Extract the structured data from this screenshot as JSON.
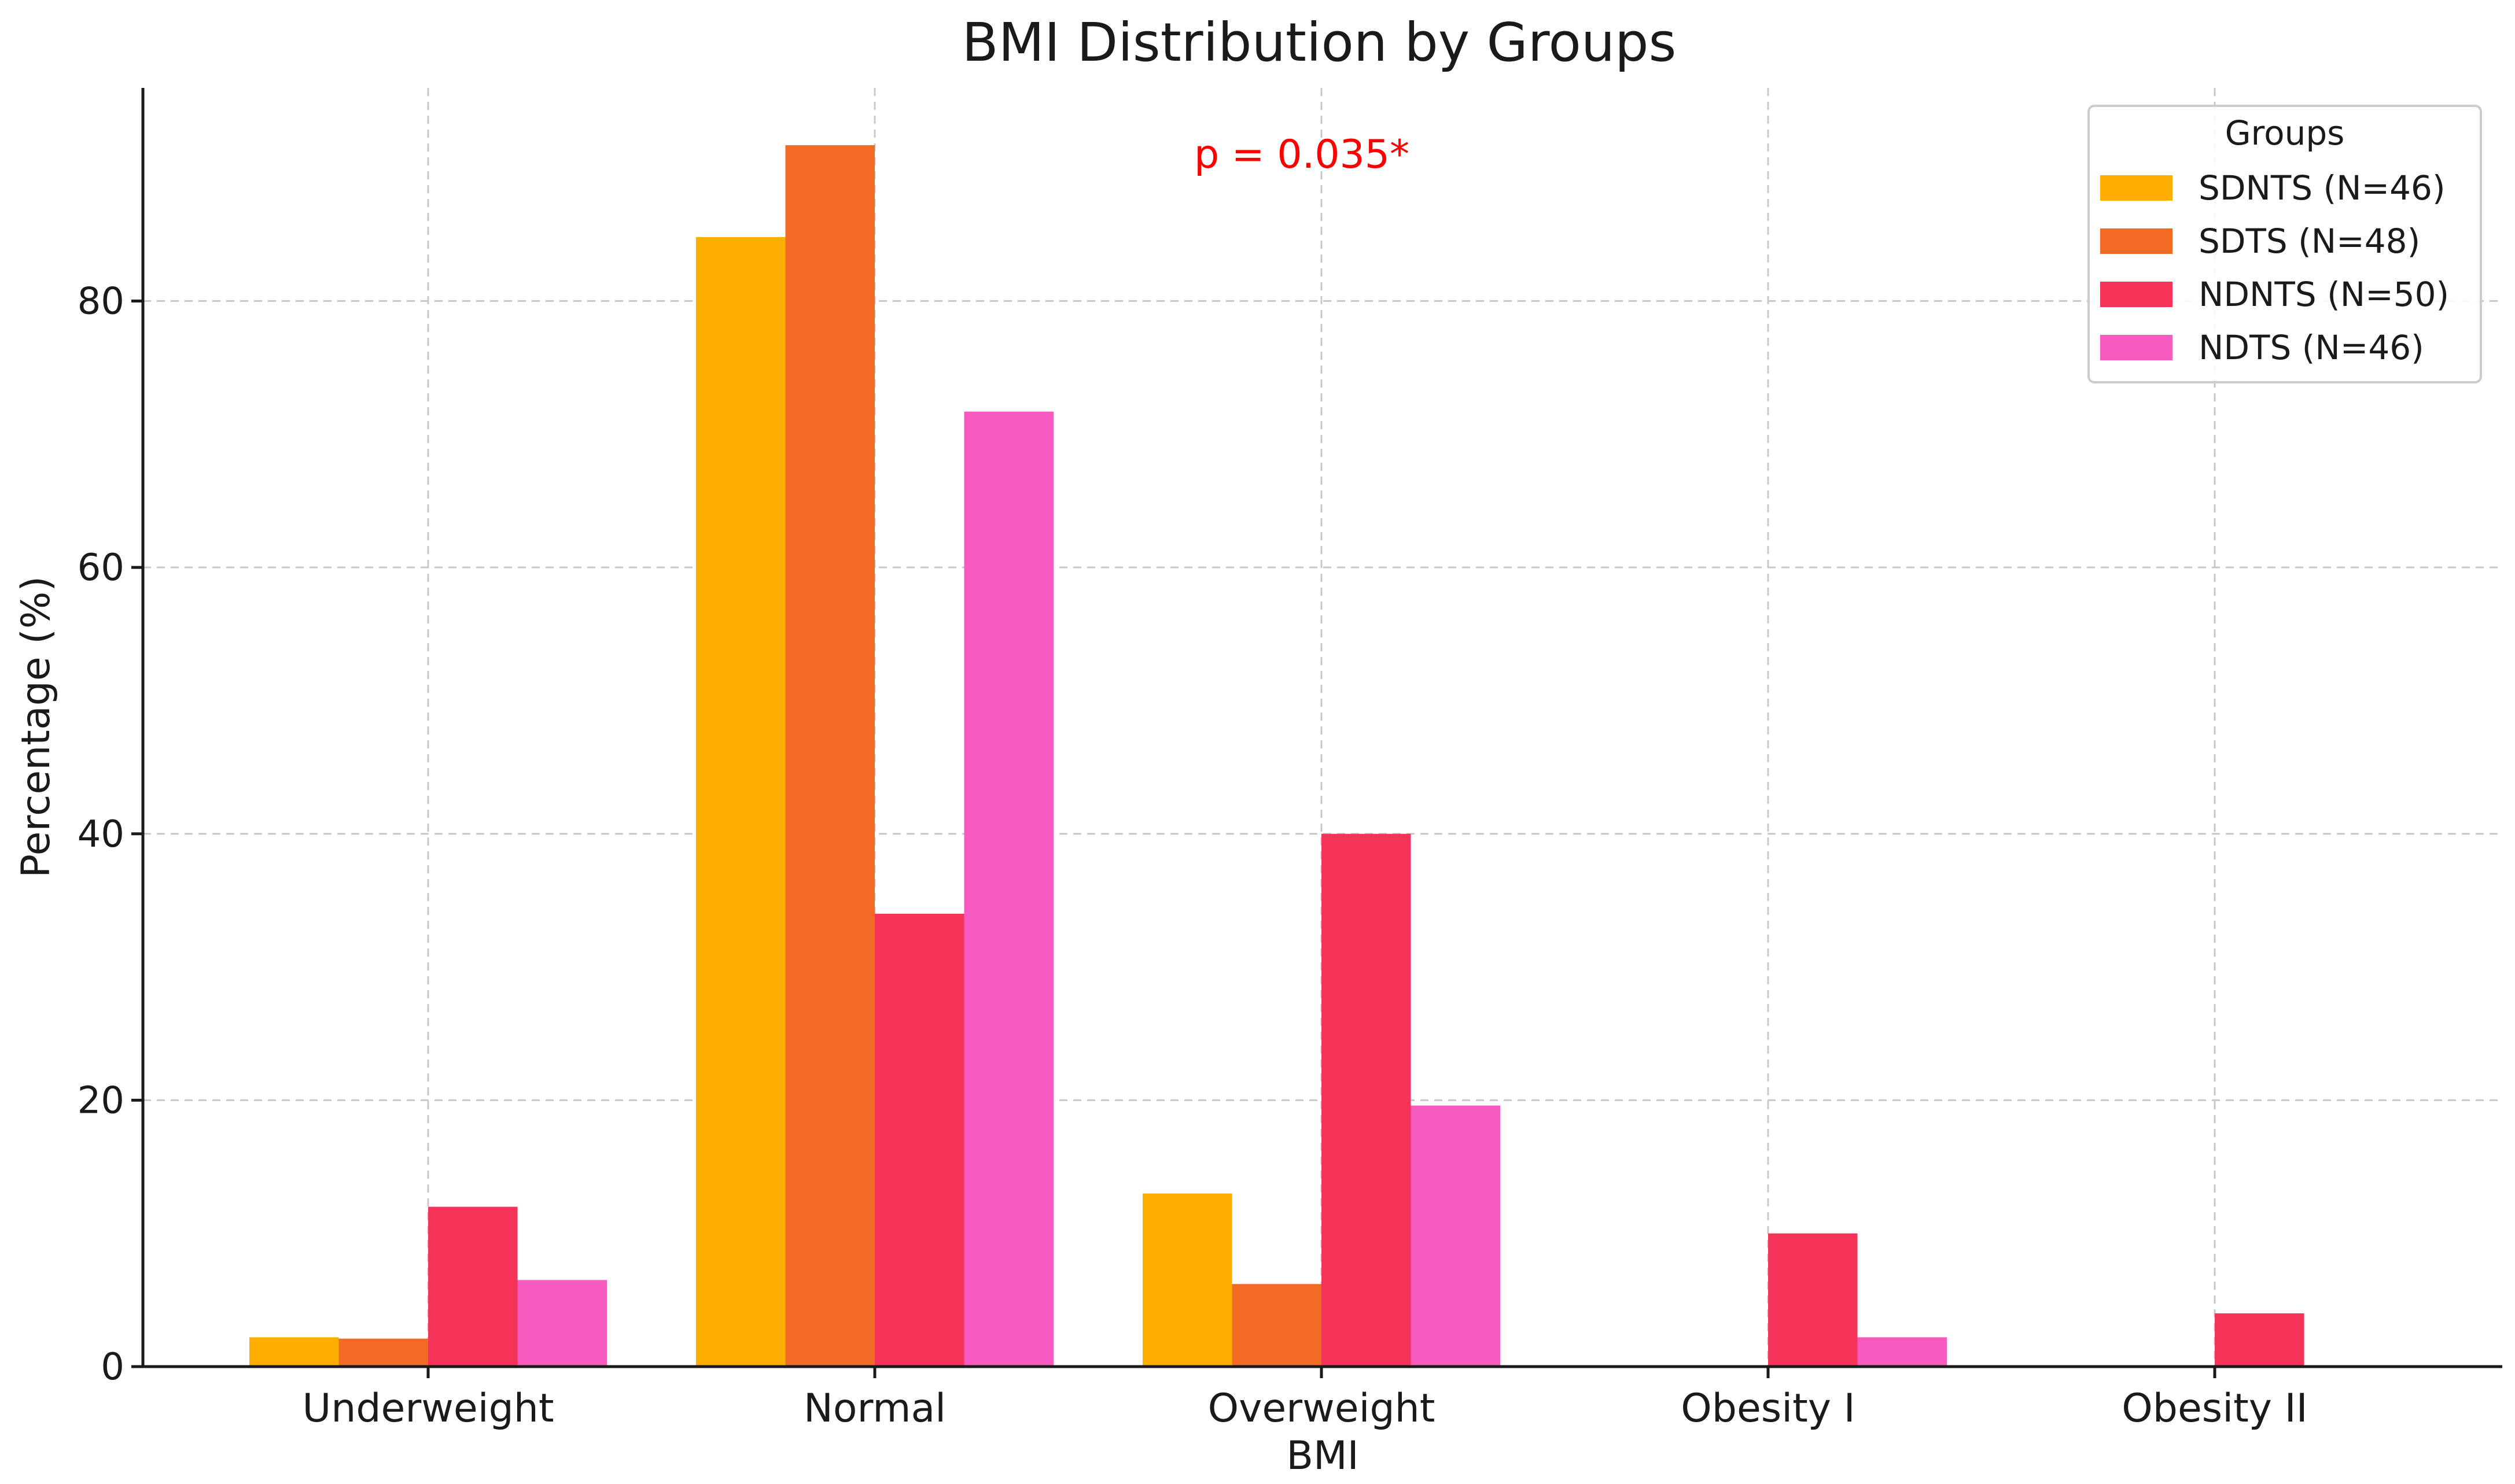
{
  "chart_data": {
    "type": "bar",
    "title": "BMI Distribution by Groups",
    "xlabel": "BMI",
    "ylabel": "Percentage (%)",
    "categories": [
      "Underweight",
      "Normal",
      "Overweight",
      "Obesity I",
      "Obesity II"
    ],
    "series": [
      {
        "name": "SDNTS (N=46)",
        "color": "#FFAE00",
        "values": [
          2.2,
          84.8,
          13.0,
          0,
          0
        ]
      },
      {
        "name": "SDTS (N=48)",
        "color": "#F26A24",
        "values": [
          2.1,
          91.7,
          6.2,
          0,
          0
        ]
      },
      {
        "name": "NDNTS (N=50)",
        "color": "#F53257",
        "values": [
          12.0,
          34.0,
          40.0,
          10.0,
          4.0
        ]
      },
      {
        "name": "NDTS (N=46)",
        "color": "#F85BBF",
        "values": [
          6.5,
          71.7,
          19.6,
          2.2,
          0
        ]
      }
    ],
    "ylim": [
      0,
      96
    ],
    "yticks": [
      "0",
      "20",
      "40",
      "60",
      "80"
    ],
    "grid": true,
    "legend": {
      "title": "Groups",
      "position": "top-right"
    },
    "annotation": {
      "text": "p = 0.035*",
      "color": "#FF0000"
    }
  }
}
